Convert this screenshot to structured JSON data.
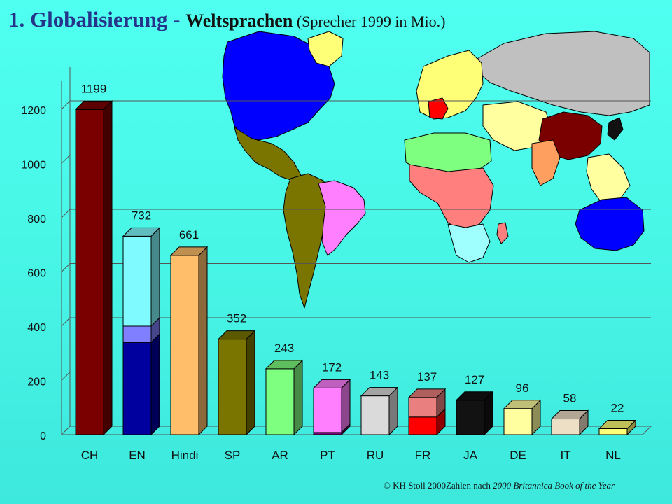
{
  "header": {
    "title": "1.  Globalisierung - ",
    "subtitle": "Weltsprachen",
    "paren": " (Sprecher 1999 in Mio.)"
  },
  "footer": {
    "copyright": "© KH Stoll 2000",
    "source_prefix": "Zahlen nach ",
    "source_book": "2000 Britannica Book of the Year"
  },
  "chart_data": {
    "type": "bar",
    "title": "Weltsprachen (Sprecher 1999 in Mio.)",
    "xlabel": "",
    "ylabel": "",
    "ylim": [
      0,
      1200
    ],
    "yticks": [
      0,
      200,
      400,
      600,
      800,
      1000,
      1200
    ],
    "grid": true,
    "categories": [
      "CH",
      "EN",
      "Hindi",
      "SP",
      "AR",
      "PT",
      "RU",
      "FR",
      "JA",
      "DE",
      "IT",
      "NL"
    ],
    "values": [
      1199,
      732,
      661,
      352,
      243,
      172,
      143,
      137,
      127,
      96,
      58,
      22
    ],
    "colors": [
      "#7a0000",
      "#7ffaff",
      "#ffbf6a",
      "#7a7500",
      "#7fff7f",
      "#ff7fff",
      "#dadada",
      "#ea7f7f",
      "#121212",
      "#ffff9f",
      "#eddfc6",
      "#ffff77"
    ],
    "stacked_segments": {
      "EN": [
        {
          "value": 340,
          "color": "#00009f"
        },
        {
          "value": 60,
          "color": "#7f7fff"
        },
        {
          "value": 332,
          "color": "#7ffaff"
        }
      ],
      "PT": [
        {
          "value": 8,
          "color": "#7f007f"
        },
        {
          "value": 164,
          "color": "#ff7fff"
        }
      ],
      "FR": [
        {
          "value": 65,
          "color": "#ff0000"
        },
        {
          "value": 72,
          "color": "#ea7f7f"
        }
      ]
    }
  },
  "map": {
    "colors": {
      "ocean": "transparent",
      "english": "#0000ff",
      "russian": "#c0c0c0",
      "chinese": "#7a0000",
      "spanish": "#7a7500",
      "portuguese": "#ff7fff",
      "arabic": "#7fff7f",
      "french": "#ff0000",
      "africa_other": "#ff7f7f",
      "south_africa": "#9fffff",
      "other": "#ffff9f"
    }
  }
}
